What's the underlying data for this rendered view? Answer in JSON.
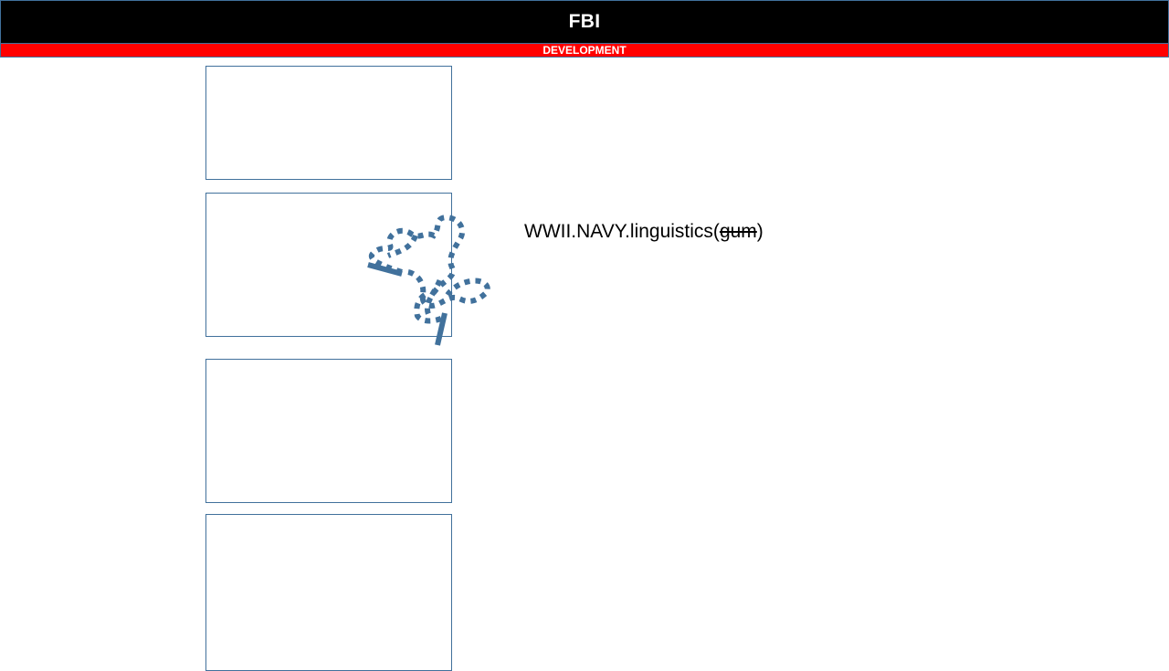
{
  "header": {
    "title": "FBI"
  },
  "banner": {
    "text": "DEVELOPMENT"
  },
  "annotation": {
    "prefix": "WWII.NAVY.linguistics(",
    "struck": "gum",
    "suffix": ")"
  },
  "colors": {
    "header_bg": "#000000",
    "banner_bg": "#ff0000",
    "outline": "#41719c",
    "scribble": "#41719c"
  },
  "icons": {
    "scribble": "dashed-scribble-icon"
  }
}
